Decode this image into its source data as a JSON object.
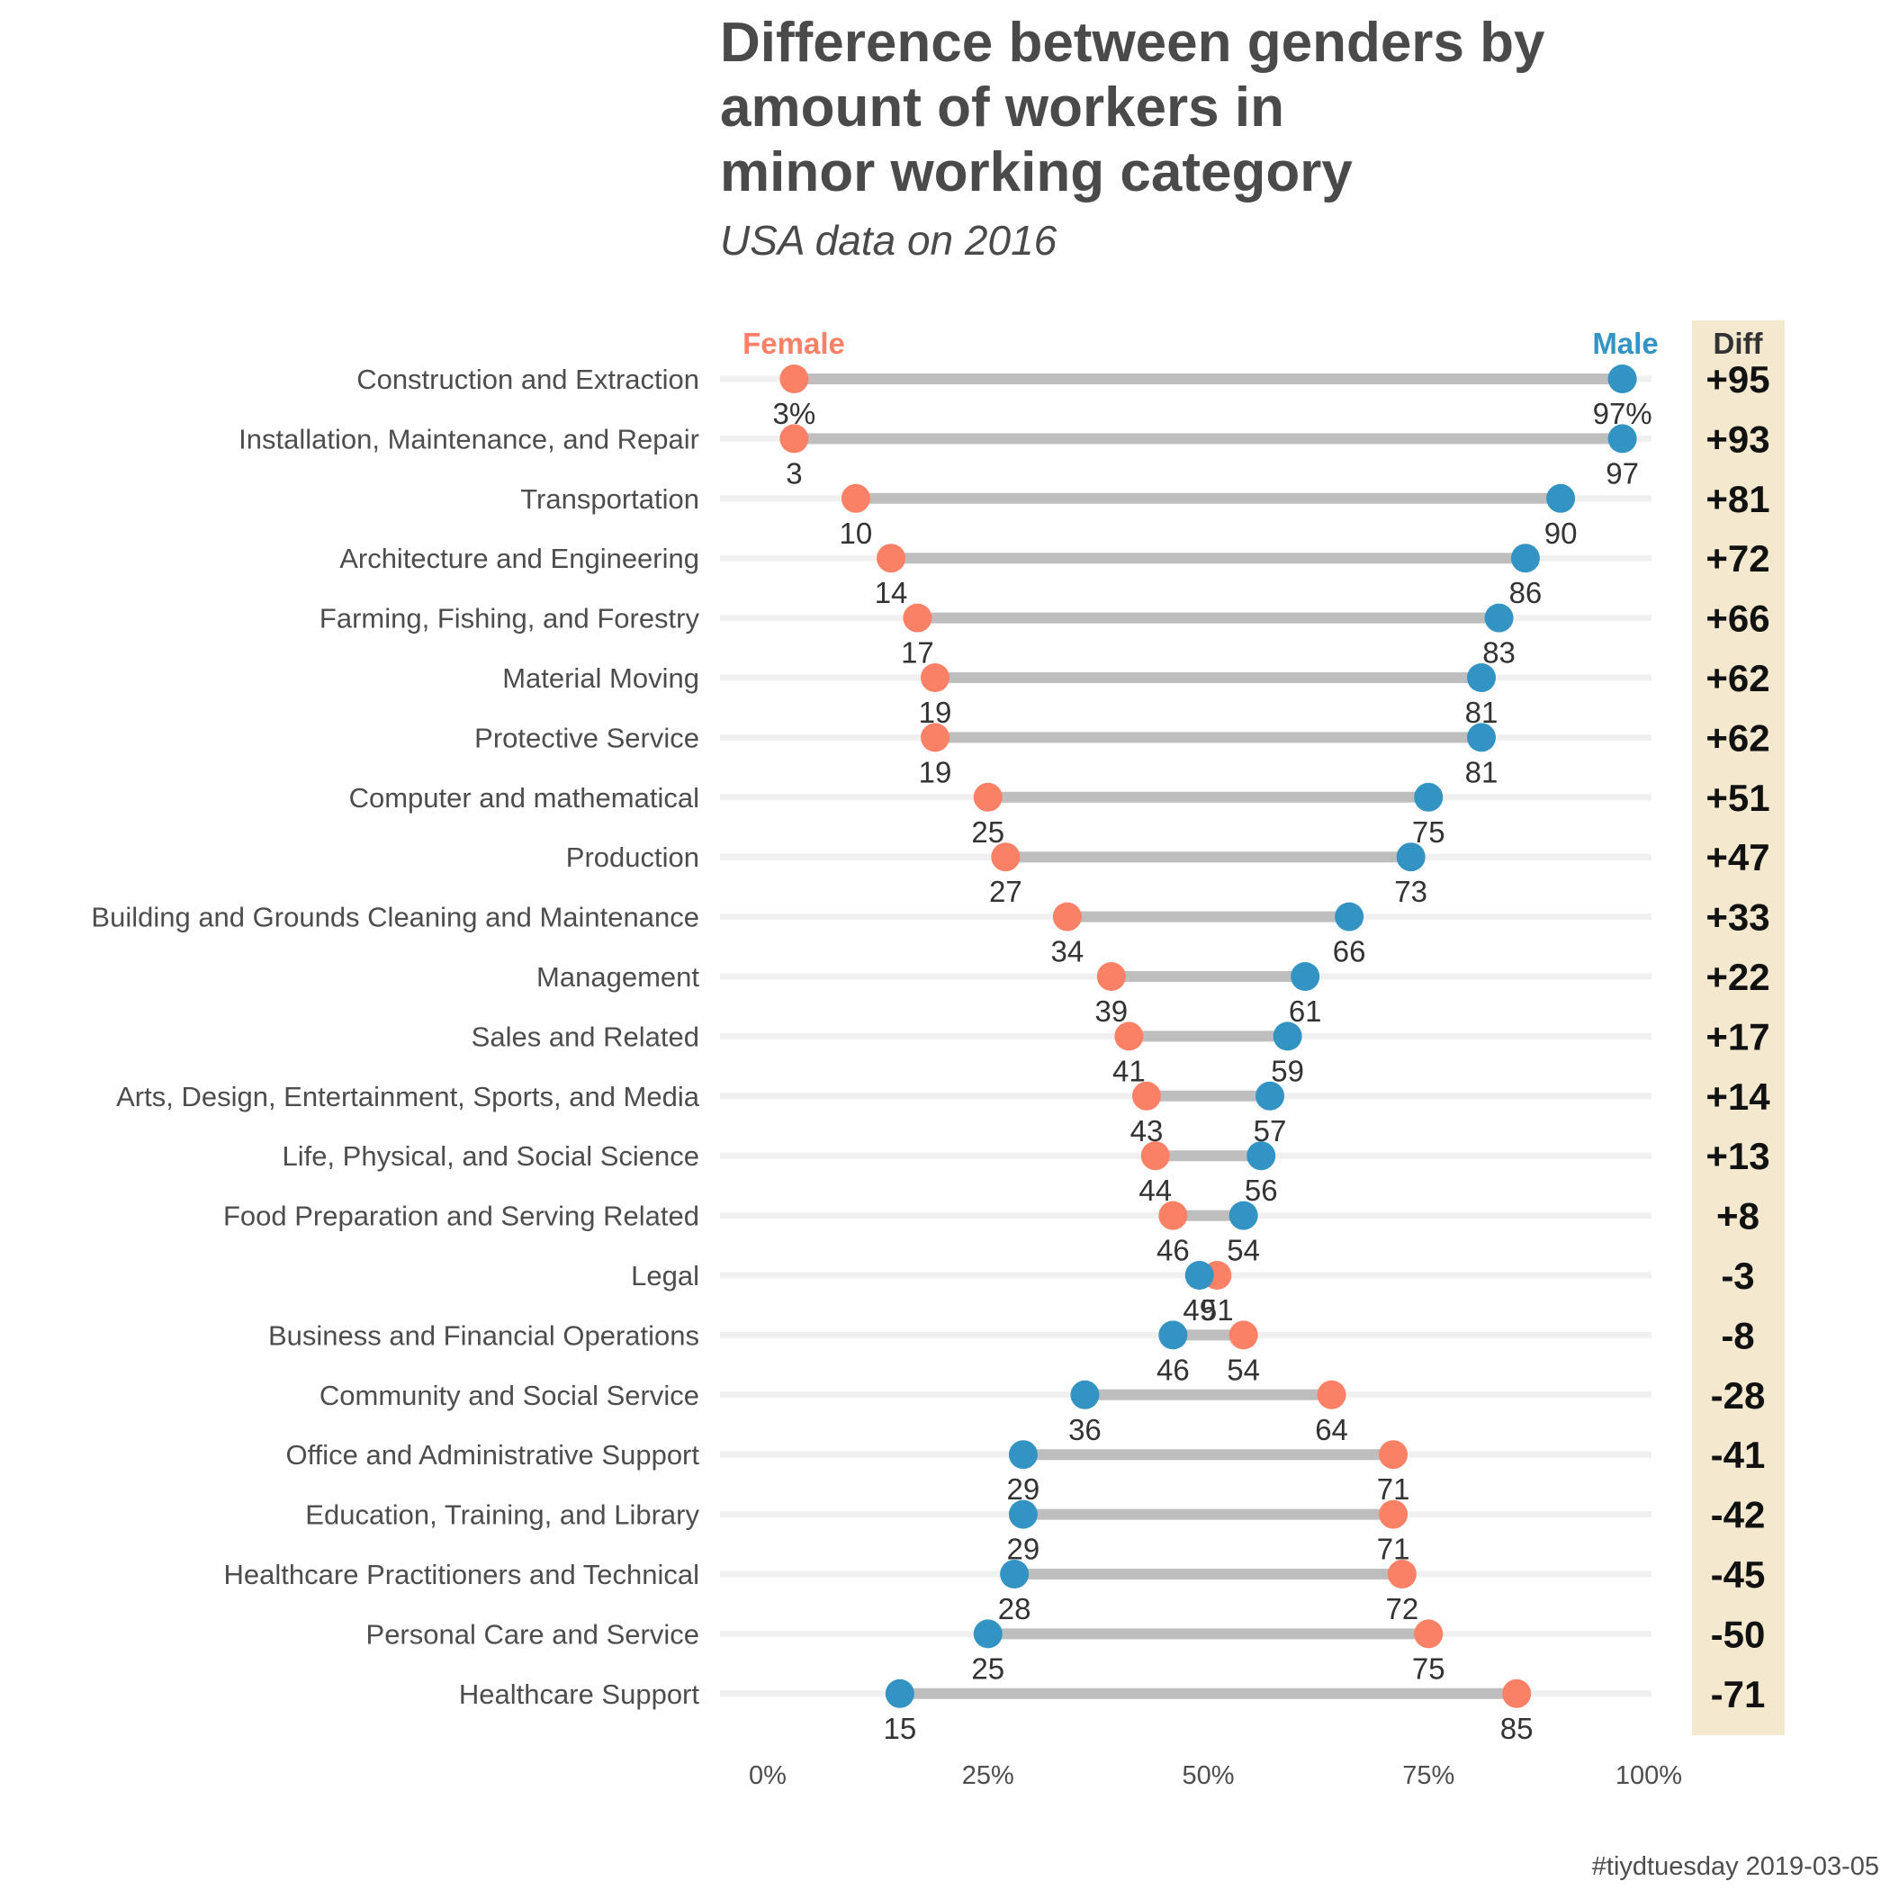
{
  "title_lines": [
    "Difference between genders by",
    "amount of workers in",
    "minor working category"
  ],
  "subtitle": "USA data on 2016",
  "caption": "#tiydtuesday 2019-03-05",
  "colors": {
    "female": "#FA8066",
    "male": "#3393C2",
    "segment": "#BEBEBE",
    "track": "#F0F0F0",
    "diff_panel": "#F4E9CF"
  },
  "chart_data": {
    "type": "dumbbell",
    "x_range": [
      0,
      100
    ],
    "x_ticks": [
      0,
      25,
      50,
      75,
      100
    ],
    "x_tick_labels": [
      "0%",
      "25%",
      "50%",
      "75%",
      "100%"
    ],
    "legend": {
      "female": "Female",
      "male": "Male"
    },
    "diff_header": "Diff",
    "categories": [
      "Construction and Extraction",
      "Installation, Maintenance, and Repair",
      "Transportation",
      "Architecture and Engineering",
      "Farming, Fishing, and Forestry",
      "Material Moving",
      "Protective Service",
      "Computer and mathematical",
      "Production",
      "Building and Grounds Cleaning and Maintenance",
      "Management",
      "Sales and Related",
      "Arts, Design, Entertainment, Sports, and Media",
      "Life, Physical, and Social Science",
      "Food Preparation and Serving Related",
      "Legal",
      "Business and Financial Operations",
      "Community and Social Service",
      "Office and Administrative Support",
      "Education, Training, and Library",
      "Healthcare Practitioners and Technical",
      "Personal Care and Service",
      "Healthcare Support"
    ],
    "series": [
      {
        "name": "Female",
        "values": [
          3,
          3,
          10,
          14,
          17,
          19,
          19,
          25,
          27,
          34,
          39,
          41,
          43,
          44,
          46,
          51,
          54,
          64,
          71,
          71,
          72,
          75,
          85
        ]
      },
      {
        "name": "Male",
        "values": [
          97,
          97,
          90,
          86,
          83,
          81,
          81,
          75,
          73,
          66,
          61,
          59,
          57,
          56,
          54,
          49,
          46,
          36,
          29,
          29,
          28,
          25,
          15
        ]
      }
    ],
    "female_labels": [
      "3%",
      "3",
      "10",
      "14",
      "17",
      "19",
      "19",
      "25",
      "27",
      "34",
      "39",
      "41",
      "43",
      "44",
      "46",
      "51",
      "54",
      "64",
      "71",
      "71",
      "72",
      "75",
      "85"
    ],
    "male_labels": [
      "97%",
      "97",
      "90",
      "86",
      "83",
      "81",
      "81",
      "75",
      "73",
      "66",
      "61",
      "59",
      "57",
      "56",
      "54",
      "49",
      "46",
      "36",
      "29",
      "29",
      "28",
      "25",
      "15"
    ],
    "diff": [
      "+95",
      "+93",
      "+81",
      "+72",
      "+66",
      "+62",
      "+62",
      "+51",
      "+47",
      "+33",
      "+22",
      "+17",
      "+14",
      "+13",
      "+8",
      "-3",
      "-8",
      "-28",
      "-41",
      "-42",
      "-45",
      "-50",
      "-71"
    ]
  }
}
